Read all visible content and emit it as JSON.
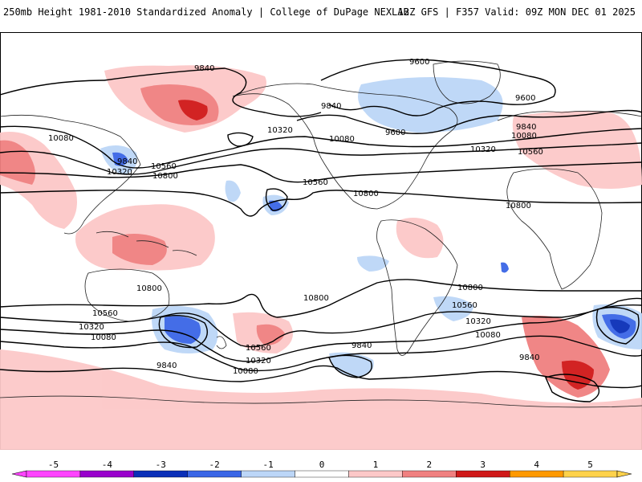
{
  "header": {
    "left": "250mb Height 1981-2010 Standardized Anomaly | College of DuPage NEXLAB",
    "right": "12Z GFS | F357 Valid: 09Z MON DEC 01 2025"
  },
  "contour_labels": [
    {
      "id": "lbl-9840-npac",
      "text": "9840"
    },
    {
      "id": "lbl-9600-arctic",
      "text": "9600"
    },
    {
      "id": "lbl-9840-canada",
      "text": "9840"
    },
    {
      "id": "lbl-9600-greenland",
      "text": "9600"
    },
    {
      "id": "lbl-9600-hudson",
      "text": "9600"
    },
    {
      "id": "lbl-9840-europe",
      "text": "9840"
    },
    {
      "id": "lbl-10080-europe",
      "text": "10080"
    },
    {
      "id": "lbl-10560-europe",
      "text": "10560"
    },
    {
      "id": "lbl-10320-europe",
      "text": "10320"
    },
    {
      "id": "lbl-10080-asia",
      "text": "10080"
    },
    {
      "id": "lbl-9840-japan",
      "text": "9840"
    },
    {
      "id": "lbl-10320-japan",
      "text": "10320"
    },
    {
      "id": "lbl-10560-pac",
      "text": "10560"
    },
    {
      "id": "lbl-10800-pac",
      "text": "10800"
    },
    {
      "id": "lbl-10320-gulfak",
      "text": "10320"
    },
    {
      "id": "lbl-10080-us",
      "text": "10080"
    },
    {
      "id": "lbl-10560-uswest",
      "text": "10560"
    },
    {
      "id": "lbl-10800-us",
      "text": "10800"
    },
    {
      "id": "lbl-10800-africa",
      "text": "10800"
    },
    {
      "id": "lbl-10800-spac",
      "text": "10800"
    },
    {
      "id": "lbl-10800-spac2",
      "text": "10800"
    },
    {
      "id": "lbl-10800-satl",
      "text": "10800"
    },
    {
      "id": "lbl-10560-satl",
      "text": "10560"
    },
    {
      "id": "lbl-10320-satl",
      "text": "10320"
    },
    {
      "id": "lbl-10080-satl",
      "text": "10080"
    },
    {
      "id": "lbl-9840-satl",
      "text": "9840"
    },
    {
      "id": "lbl-10560-aus",
      "text": "10560"
    },
    {
      "id": "lbl-10320-aus",
      "text": "10320"
    },
    {
      "id": "lbl-10080-aus",
      "text": "10080"
    },
    {
      "id": "lbl-9840-aus",
      "text": "9840"
    },
    {
      "id": "lbl-10560-nz",
      "text": "10560"
    },
    {
      "id": "lbl-10320-nz",
      "text": "10320"
    },
    {
      "id": "lbl-10080-nz",
      "text": "10080"
    },
    {
      "id": "lbl-9840-spac",
      "text": "9840"
    }
  ],
  "legend": {
    "ticks": [
      "-5",
      "-4",
      "-3",
      "-2",
      "-1",
      "0",
      "1",
      "2",
      "3",
      "4",
      "5"
    ],
    "colors": [
      "#ff44ff",
      "#9900cc",
      "#0a2fb8",
      "#3a66e6",
      "#bcd6f7",
      "#ffffff",
      "#fcc8c8",
      "#f08080",
      "#d01818",
      "#ff9900",
      "#ffd24a"
    ]
  }
}
